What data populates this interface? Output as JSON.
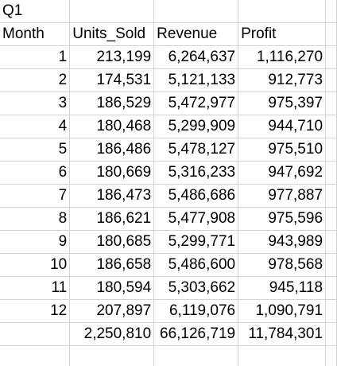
{
  "sheet": {
    "section_label": "Q1",
    "headers": {
      "month": "Month",
      "units_sold": "Units_Sold",
      "revenue": "Revenue",
      "profit": "Profit"
    },
    "rows": [
      {
        "month": "1",
        "units_sold": "213,199",
        "revenue": "6,264,637",
        "profit": "1,116,270"
      },
      {
        "month": "2",
        "units_sold": "174,531",
        "revenue": "5,121,133",
        "profit": "912,773"
      },
      {
        "month": "3",
        "units_sold": "186,529",
        "revenue": "5,472,977",
        "profit": "975,397"
      },
      {
        "month": "4",
        "units_sold": "180,468",
        "revenue": "5,299,909",
        "profit": "944,710"
      },
      {
        "month": "5",
        "units_sold": "186,486",
        "revenue": "5,478,127",
        "profit": "975,510"
      },
      {
        "month": "6",
        "units_sold": "180,669",
        "revenue": "5,316,233",
        "profit": "947,692"
      },
      {
        "month": "7",
        "units_sold": "186,473",
        "revenue": "5,486,686",
        "profit": "977,887"
      },
      {
        "month": "8",
        "units_sold": "186,621",
        "revenue": "5,477,908",
        "profit": "975,596"
      },
      {
        "month": "9",
        "units_sold": "180,685",
        "revenue": "5,299,771",
        "profit": "943,989"
      },
      {
        "month": "10",
        "units_sold": "186,658",
        "revenue": "5,486,600",
        "profit": "978,568"
      },
      {
        "month": "11",
        "units_sold": "180,594",
        "revenue": "5,303,662",
        "profit": "945,118"
      },
      {
        "month": "12",
        "units_sold": "207,897",
        "revenue": "6,119,076",
        "profit": "1,090,791"
      }
    ],
    "totals": {
      "units_sold": "2,250,810",
      "revenue": "66,126,719",
      "profit": "11,784,301"
    }
  }
}
